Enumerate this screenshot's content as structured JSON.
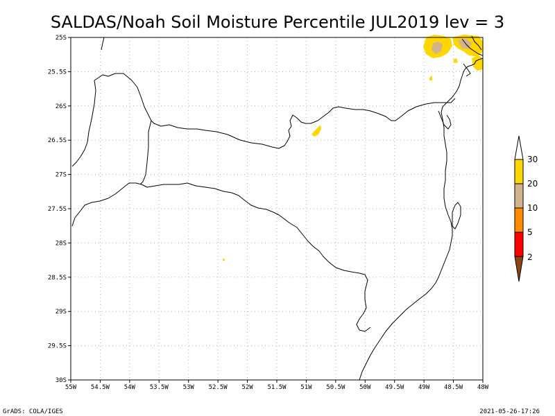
{
  "title": "SALDAS/Noah Soil Moisture Percentile JUL2019 lev = 3",
  "x_ticks": [
    "55W",
    "54.5W",
    "54W",
    "53.5W",
    "53W",
    "52.5W",
    "52W",
    "51.5W",
    "51W",
    "50.5W",
    "50W",
    "49.5W",
    "49W",
    "48.5W",
    "48W"
  ],
  "y_ticks": [
    "25S",
    "25.5S",
    "26S",
    "26.5S",
    "27S",
    "27.5S",
    "28S",
    "28.5S",
    "29S",
    "29.5S",
    "30S"
  ],
  "legend": {
    "labels": [
      "2",
      "5",
      "10",
      "20",
      "30"
    ],
    "colors": {
      "below_2": "#8b4513",
      "2_5": "#ff0000",
      "5_10": "#ff8c00",
      "10_20": "#d2b48c",
      "20_30": "#ffd700",
      "above_30": "#ffffff"
    }
  },
  "footer": {
    "left": "GrADS: COLA/IGES",
    "right": "2021-05-26-17:26"
  },
  "map": {
    "lon_range": [
      -55,
      -48
    ],
    "lat_range": [
      -30,
      -25
    ],
    "features": [
      "state-boundaries",
      "coastline",
      "soil-moisture-shading"
    ]
  }
}
